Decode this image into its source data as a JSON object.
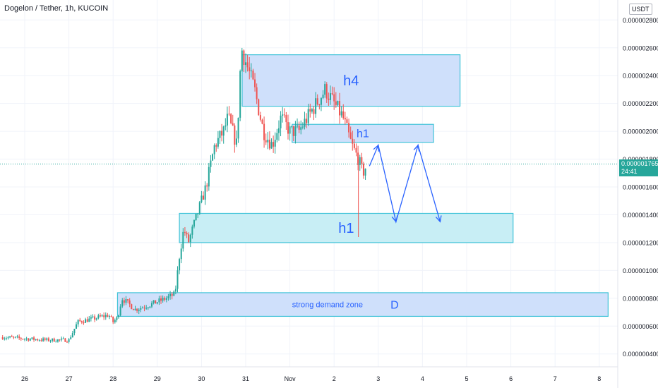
{
  "title": "Dogelon / Tether, 1h, KUCOIN",
  "currency": "USDT",
  "colors": {
    "up": "#26a69a",
    "down": "#ef5350",
    "zone_h4_fill": "#cfe0fb",
    "zone_cyan_fill": "#c8eef5",
    "zone_border": "#41c3d8",
    "annotation": "#2962ff",
    "last_price_line": "#26a69a",
    "grid": "#f0f3fa"
  },
  "price": {
    "last": "0.000001765",
    "countdown": "24:41",
    "last_value": 1.765e-06
  },
  "chart_data": {
    "type": "candlestick",
    "title": "Dogelon / Tether, 1h, KUCOIN",
    "y_axis": {
      "min": 3e-07,
      "max": 2.9e-06,
      "ticks": [
        {
          "value": 2.8e-06,
          "label": "0.000002800"
        },
        {
          "value": 2.6e-06,
          "label": "0.000002600"
        },
        {
          "value": 2.4e-06,
          "label": "0.000002400"
        },
        {
          "value": 2.2e-06,
          "label": "0.000002200"
        },
        {
          "value": 2e-06,
          "label": "0.000002000"
        },
        {
          "value": 1.8e-06,
          "label": "0.000001800"
        },
        {
          "value": 1.6e-06,
          "label": "0.000001600"
        },
        {
          "value": 1.4e-06,
          "label": "0.000001400"
        },
        {
          "value": 1.2e-06,
          "label": "0.000001200"
        },
        {
          "value": 1e-06,
          "label": "0.000001000"
        },
        {
          "value": 8e-07,
          "label": "0.000000800"
        },
        {
          "value": 6e-07,
          "label": "0.000000600"
        },
        {
          "value": 4e-07,
          "label": "0.000000400"
        }
      ]
    },
    "x_axis": {
      "min": 25.5,
      "max": 39.0,
      "ticks": [
        {
          "value": 26,
          "label": "26"
        },
        {
          "value": 27,
          "label": "27"
        },
        {
          "value": 28,
          "label": "28"
        },
        {
          "value": 29,
          "label": "29"
        },
        {
          "value": 30,
          "label": "30"
        },
        {
          "value": 31,
          "label": "31"
        },
        {
          "value": 32,
          "label": "Nov"
        },
        {
          "value": 33,
          "label": "2"
        },
        {
          "value": 34,
          "label": "3"
        },
        {
          "value": 35,
          "label": "4"
        },
        {
          "value": 36,
          "label": "5"
        },
        {
          "value": 37,
          "label": "6"
        },
        {
          "value": 38,
          "label": "7"
        },
        {
          "value": 39,
          "label": "8"
        }
      ]
    },
    "price_path": [
      [
        25.5,
        5.2e-07
      ],
      [
        26.5,
        5e-07
      ],
      [
        27.0,
        5e-07
      ],
      [
        27.2,
        6.3e-07
      ],
      [
        27.5,
        6.5e-07
      ],
      [
        27.9,
        6.8e-07
      ],
      [
        28.0,
        6.3e-07
      ],
      [
        28.1,
        6.6e-07
      ],
      [
        28.2,
        8e-07
      ],
      [
        28.5,
        7.2e-07
      ],
      [
        28.8,
        7.5e-07
      ],
      [
        29.2,
        8e-07
      ],
      [
        29.4,
        8.3e-07
      ],
      [
        29.5,
        1.1e-06
      ],
      [
        29.6,
        1.3e-06
      ],
      [
        29.7,
        1.2e-06
      ],
      [
        29.9,
        1.4e-06
      ],
      [
        30.0,
        1.5e-06
      ],
      [
        30.1,
        1.6e-06
      ],
      [
        30.3,
        1.9e-06
      ],
      [
        30.5,
        2e-06
      ],
      [
        30.6,
        2.1e-06
      ],
      [
        30.8,
        1.9e-06
      ],
      [
        30.9,
        2.6e-06
      ],
      [
        31.0,
        2.5e-06
      ],
      [
        31.2,
        2.3e-06
      ],
      [
        31.4,
        2e-06
      ],
      [
        31.6,
        1.9e-06
      ],
      [
        31.8,
        2.1e-06
      ],
      [
        32.0,
        2e-06
      ],
      [
        32.2,
        2e-06
      ],
      [
        32.4,
        2.1e-06
      ],
      [
        32.6,
        2.2e-06
      ],
      [
        32.8,
        2.3e-06
      ],
      [
        33.0,
        2.2e-06
      ],
      [
        33.2,
        2.1e-06
      ],
      [
        33.4,
        1.9e-06
      ],
      [
        33.55,
        1.8e-06
      ],
      [
        33.65,
        1.7e-06
      ],
      [
        33.75,
        1.765e-06
      ]
    ],
    "spike_wick": {
      "x": 33.55,
      "high": 1.8e-06,
      "low": 1.24e-06
    },
    "zones": [
      {
        "label": "h4",
        "x_start": 30.92,
        "x_end": 35.85,
        "y_low": 2.18e-06,
        "y_high": 2.55e-06,
        "fill": "blue"
      },
      {
        "label": "h1",
        "x_start": 32.05,
        "x_end": 35.25,
        "y_low": 1.92e-06,
        "y_high": 2.05e-06,
        "fill": "blue"
      },
      {
        "label": "h1",
        "x_start": 29.5,
        "x_end": 37.05,
        "y_low": 1.2e-06,
        "y_high": 1.41e-06,
        "fill": "cyan"
      },
      {
        "label": "D",
        "sublabel": "strong demand zone",
        "x_start": 28.1,
        "x_end": 39.2,
        "y_low": 6.7e-07,
        "y_high": 8.4e-07,
        "fill": "blue"
      }
    ],
    "projection": [
      [
        33.8,
        1.75e-06
      ],
      [
        34.0,
        1.9e-06
      ],
      [
        34.4,
        1.35e-06
      ],
      [
        34.9,
        1.9e-06
      ],
      [
        35.4,
        1.35e-06
      ]
    ]
  }
}
